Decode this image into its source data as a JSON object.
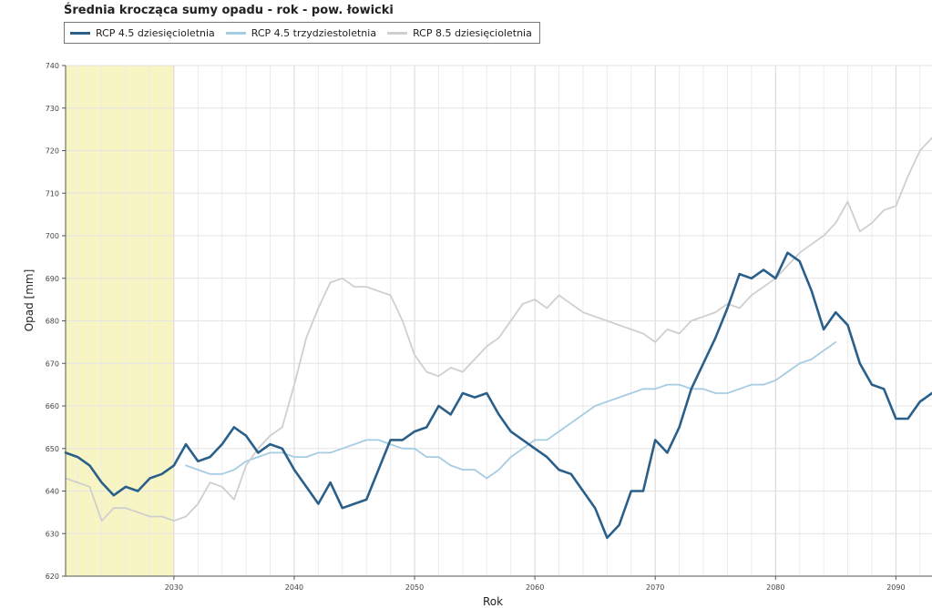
{
  "chart_data": {
    "type": "line",
    "title": "Średnia krocząca sumy opadu - rok - pow. łowicki",
    "xlabel": "Rok",
    "ylabel": "Opad [mm]",
    "xlim": [
      2021,
      2093
    ],
    "ylim": [
      620,
      740
    ],
    "xticks": [
      2030,
      2040,
      2050,
      2060,
      2070,
      2080,
      2090
    ],
    "yticks": [
      620,
      630,
      640,
      650,
      660,
      670,
      680,
      690,
      700,
      710,
      720,
      730,
      740
    ],
    "grid": true,
    "legend_position": "top",
    "highlight_range": [
      2021,
      2030
    ],
    "highlight_color": "#f7f5c4",
    "series": [
      {
        "name": "RCP 4.5 dziesięcioletnia",
        "color": "#2a5f8a",
        "x": [
          2021,
          2022,
          2023,
          2024,
          2025,
          2026,
          2027,
          2028,
          2029,
          2030,
          2031,
          2032,
          2033,
          2034,
          2035,
          2036,
          2037,
          2038,
          2039,
          2040,
          2041,
          2042,
          2043,
          2044,
          2045,
          2046,
          2047,
          2048,
          2049,
          2050,
          2051,
          2052,
          2053,
          2054,
          2055,
          2056,
          2057,
          2058,
          2059,
          2060,
          2061,
          2062,
          2063,
          2064,
          2065,
          2066,
          2067,
          2068,
          2069,
          2070,
          2071,
          2072,
          2073,
          2074,
          2075,
          2076,
          2077,
          2078,
          2079,
          2080,
          2081,
          2082,
          2083,
          2084,
          2085,
          2086,
          2087,
          2088,
          2089,
          2090,
          2091,
          2092,
          2093
        ],
        "y": [
          649,
          648,
          646,
          642,
          639,
          641,
          640,
          643,
          644,
          646,
          651,
          647,
          648,
          651,
          655,
          653,
          649,
          651,
          650,
          645,
          641,
          637,
          642,
          636,
          637,
          638,
          645,
          652,
          652,
          654,
          655,
          660,
          658,
          663,
          662,
          663,
          658,
          654,
          652,
          650,
          648,
          645,
          644,
          640,
          636,
          629,
          632,
          640,
          640,
          652,
          649,
          655,
          664,
          670,
          676,
          683,
          691,
          690,
          692,
          690,
          696,
          694,
          687,
          678,
          682,
          679,
          670,
          665,
          664,
          657,
          657,
          661,
          663
        ]
      },
      {
        "name": "RCP 4.5 trzydziestoletnia",
        "color": "#a6cce4",
        "x": [
          2031,
          2032,
          2033,
          2034,
          2035,
          2036,
          2037,
          2038,
          2039,
          2040,
          2041,
          2042,
          2043,
          2044,
          2045,
          2046,
          2047,
          2048,
          2049,
          2050,
          2051,
          2052,
          2053,
          2054,
          2055,
          2056,
          2057,
          2058,
          2059,
          2060,
          2061,
          2062,
          2063,
          2064,
          2065,
          2066,
          2067,
          2068,
          2069,
          2070,
          2071,
          2072,
          2073,
          2074,
          2075,
          2076,
          2077,
          2078,
          2079,
          2080,
          2081,
          2082,
          2083,
          2084,
          2085
        ],
        "y": [
          646,
          645,
          644,
          644,
          645,
          647,
          648,
          649,
          649,
          648,
          648,
          649,
          649,
          650,
          651,
          652,
          652,
          651,
          650,
          650,
          648,
          648,
          646,
          645,
          645,
          643,
          645,
          648,
          650,
          652,
          652,
          654,
          656,
          658,
          660,
          661,
          662,
          663,
          664,
          664,
          665,
          665,
          664,
          664,
          663,
          663,
          664,
          665,
          665,
          666,
          668,
          670,
          671,
          673,
          675
        ]
      },
      {
        "name": "RCP 8.5 dziesięcioletnia",
        "color": "#cfcfcf",
        "x": [
          2021,
          2022,
          2023,
          2024,
          2025,
          2026,
          2027,
          2028,
          2029,
          2030,
          2031,
          2032,
          2033,
          2034,
          2035,
          2036,
          2037,
          2038,
          2039,
          2040,
          2041,
          2042,
          2043,
          2044,
          2045,
          2046,
          2047,
          2048,
          2049,
          2050,
          2051,
          2052,
          2053,
          2054,
          2055,
          2056,
          2057,
          2058,
          2059,
          2060,
          2061,
          2062,
          2063,
          2064,
          2065,
          2066,
          2067,
          2068,
          2069,
          2070,
          2071,
          2072,
          2073,
          2074,
          2075,
          2076,
          2077,
          2078,
          2079,
          2080,
          2081,
          2082,
          2083,
          2084,
          2085,
          2086,
          2087,
          2088,
          2089,
          2090,
          2091,
          2092,
          2093
        ],
        "y": [
          643,
          642,
          641,
          633,
          636,
          636,
          635,
          634,
          634,
          633,
          634,
          637,
          642,
          641,
          638,
          646,
          650,
          653,
          655,
          665,
          676,
          683,
          689,
          690,
          688,
          688,
          687,
          686,
          680,
          672,
          668,
          667,
          669,
          668,
          671,
          674,
          676,
          680,
          684,
          685,
          683,
          686,
          684,
          682,
          681,
          680,
          679,
          678,
          677,
          675,
          678,
          677,
          680,
          681,
          682,
          684,
          683,
          686,
          688,
          690,
          693,
          696,
          698,
          700,
          703,
          708,
          701,
          703,
          706,
          707,
          714,
          720,
          723
        ]
      }
    ]
  }
}
